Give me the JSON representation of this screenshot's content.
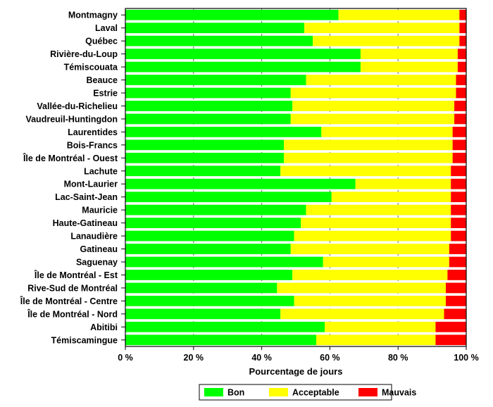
{
  "chart_data": {
    "type": "bar",
    "orientation": "horizontal",
    "stacked": true,
    "xlabel": "Pourcentage de jours",
    "xlim": [
      0,
      100
    ],
    "xticks": [
      "0 %",
      "20 %",
      "40 %",
      "60 %",
      "80 %",
      "100 %"
    ],
    "grid": "vertical dashed",
    "legend_position": "bottom",
    "categories": [
      "Montmagny",
      "Laval",
      "Québec",
      "Rivière-du-Loup",
      "Témiscouata",
      "Beauce",
      "Estrie",
      "Vallée-du-Richelieu",
      "Vaudreuil-Huntingdon",
      "Laurentides",
      "Bois-Francs",
      "Île de Montréal - Ouest",
      "Lachute",
      "Mont-Laurier",
      "Lac-Saint-Jean",
      "Mauricie",
      "Haute-Gatineau",
      "Lanaudière",
      "Gatineau",
      "Saguenay",
      "Île de Montréal - Est",
      "Rive-Sud de Montréal",
      "Île de Montréal - Centre",
      "Île de Montréal - Nord",
      "Abitibi",
      "Témiscamingue"
    ],
    "series": [
      {
        "name": "Bon",
        "color": "#00ff00",
        "values": [
          62.5,
          52.5,
          55.0,
          69.0,
          69.0,
          53.0,
          48.5,
          49.0,
          48.5,
          57.5,
          46.5,
          46.5,
          45.5,
          67.5,
          60.5,
          53.0,
          51.5,
          49.5,
          48.5,
          58.0,
          49.0,
          44.5,
          49.5,
          45.5,
          58.5,
          56.0
        ]
      },
      {
        "name": "Acceptable",
        "color": "#ffff00",
        "values": [
          35.5,
          45.5,
          43.0,
          28.5,
          28.5,
          44.0,
          48.5,
          47.5,
          48.0,
          38.5,
          49.5,
          49.5,
          50.0,
          28.0,
          35.0,
          42.5,
          44.0,
          46.0,
          46.5,
          37.0,
          45.5,
          49.5,
          44.5,
          48.0,
          32.5,
          35.0
        ]
      },
      {
        "name": "Mauvais",
        "color": "#ff0000",
        "values": [
          2.0,
          2.0,
          2.0,
          2.5,
          2.5,
          3.0,
          3.0,
          3.5,
          3.5,
          4.0,
          4.0,
          4.0,
          4.5,
          4.5,
          4.5,
          4.5,
          4.5,
          4.5,
          5.0,
          5.0,
          5.5,
          6.0,
          6.0,
          6.5,
          9.0,
          9.0
        ]
      }
    ]
  }
}
